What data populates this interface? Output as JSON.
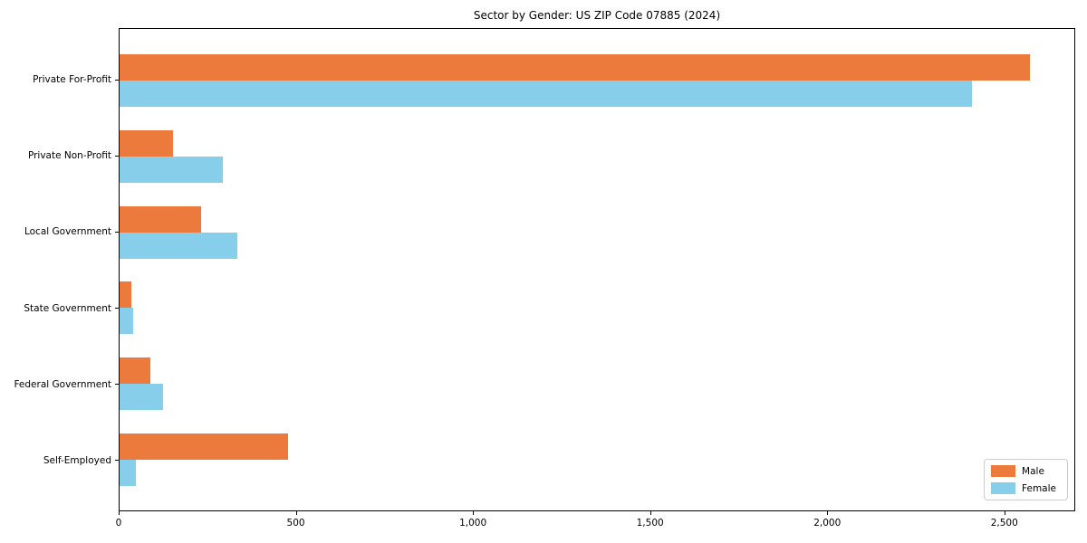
{
  "chart_data": {
    "type": "bar",
    "orientation": "horizontal",
    "title": "Sector by Gender: US ZIP Code 07885 (2024)",
    "categories": [
      "Private For-Profit",
      "Private Non-Profit",
      "Local Government",
      "State Government",
      "Federal Government",
      "Self-Employed"
    ],
    "series": [
      {
        "name": "Male",
        "color": "#ec7a3c",
        "values": [
          2575,
          150,
          230,
          34,
          88,
          476
        ]
      },
      {
        "name": "Female",
        "color": "#87ceeb",
        "values": [
          2410,
          293,
          334,
          38,
          124,
          47
        ]
      }
    ],
    "xlabel": "",
    "ylabel": "",
    "xlim": [
      0,
      2700
    ],
    "xticks": [
      0,
      500,
      1000,
      1500,
      2000,
      2500
    ],
    "xtick_labels": [
      "0",
      "500",
      "1,000",
      "1,500",
      "2,000",
      "2,500"
    ],
    "grid": false,
    "legend": {
      "position": "lower-right",
      "entries": [
        "Male",
        "Female"
      ]
    },
    "colors": {
      "male": "#ec7a3c",
      "female": "#87ceeb",
      "spine": "#000000",
      "legend_border": "#cccccc"
    }
  }
}
